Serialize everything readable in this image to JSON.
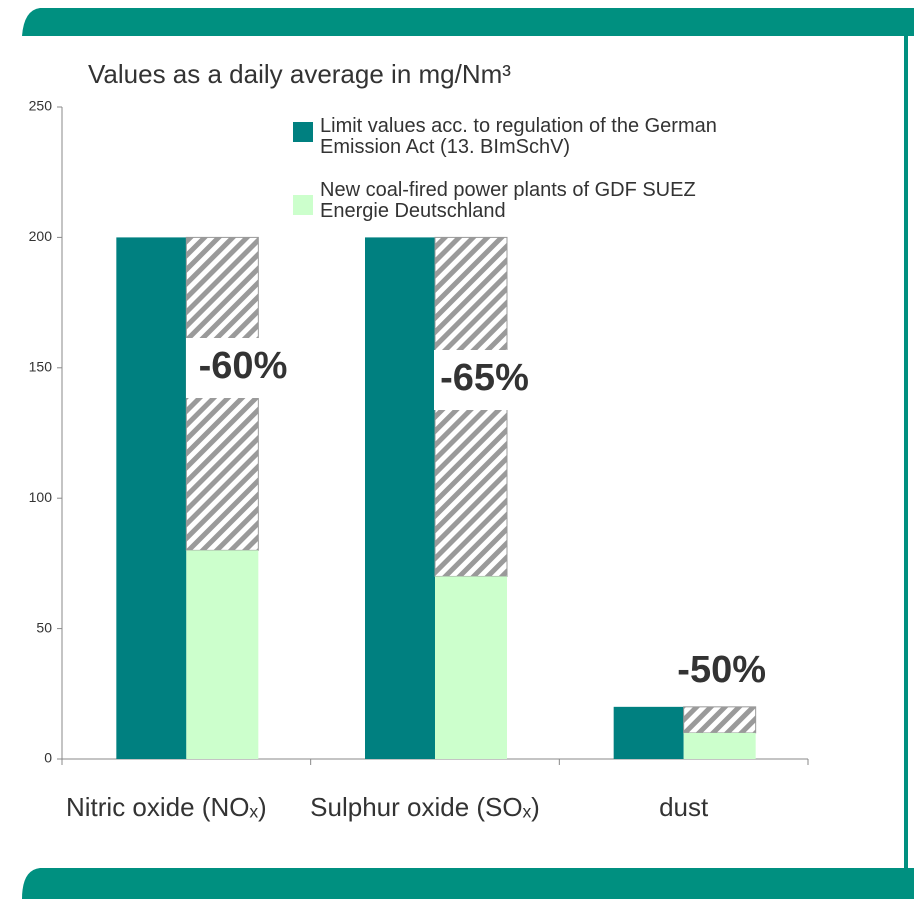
{
  "chart_data": {
    "type": "bar",
    "title": "Values as a daily average in mg/Nm³",
    "categories": [
      "Nitric oxide (NOₓ)",
      "Sulphur oxide (SOₓ)",
      "dust"
    ],
    "series": [
      {
        "name": "Limit values acc. to regulation of the German Emission Act (13. BImSchV)",
        "color": "#008080",
        "values": [
          200,
          200,
          20
        ]
      },
      {
        "name": "New coal-fired power plants of GDF SUEZ Energie Deutschland",
        "color": "#ccffcc",
        "values": [
          80,
          70,
          10
        ]
      }
    ],
    "annotations": [
      "-60%",
      "-65%",
      "-50%"
    ],
    "ylim": [
      0,
      250
    ],
    "yticks": [
      0,
      50,
      100,
      150,
      200,
      250
    ]
  }
}
